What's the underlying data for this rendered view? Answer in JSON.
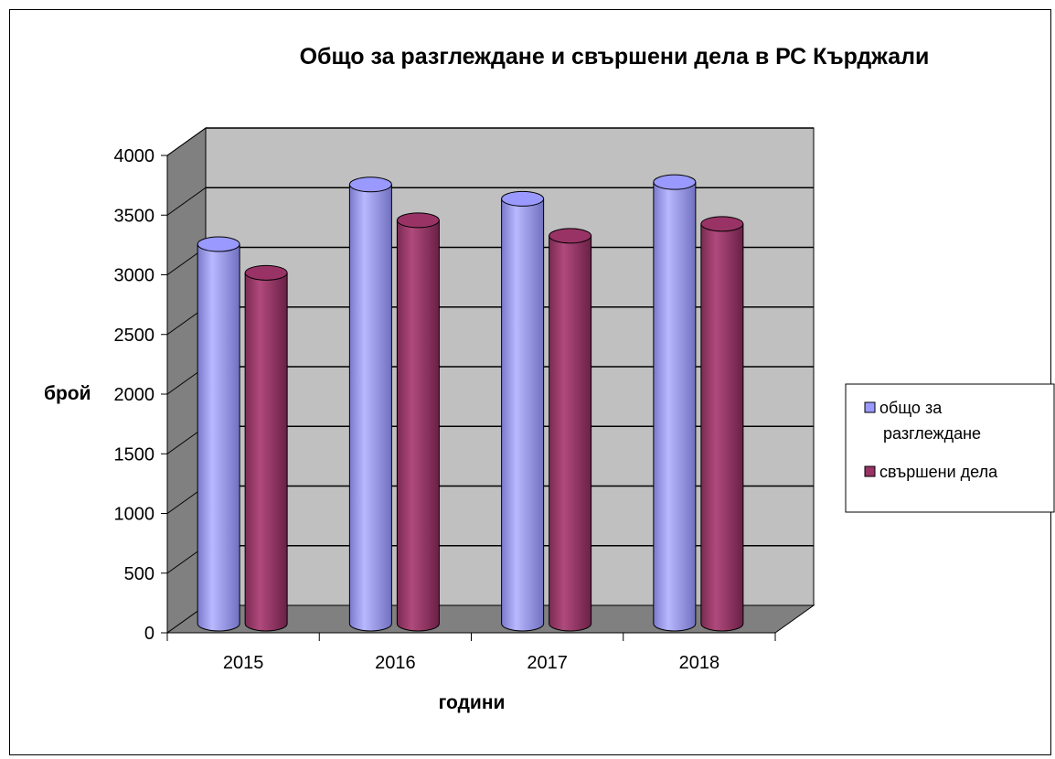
{
  "chart_data": {
    "type": "bar",
    "title": "Общо за разглеждане и свършени дела в РС Кърджали",
    "xlabel": "години",
    "ylabel": "брой",
    "categories": [
      "2015",
      "2016",
      "2017",
      "2018"
    ],
    "series": [
      {
        "name": "общо за разглеждане",
        "legend_lines": [
          "общо за",
          "разглеждане"
        ],
        "values": [
          3180,
          3680,
          3560,
          3700
        ],
        "color": "#9999ff"
      },
      {
        "name": "свършени дела",
        "legend_lines": [
          "свършени дела"
        ],
        "values": [
          2940,
          3380,
          3250,
          3350
        ],
        "color": "#993366"
      }
    ],
    "ylim": [
      0,
      4000
    ],
    "yticks": [
      "0",
      "500",
      "1000",
      "1500",
      "2000",
      "2500",
      "3000",
      "3500",
      "4000"
    ],
    "grid": true,
    "legend_position": "right",
    "colors": {
      "wall": "#c0c0c0",
      "floor": "#808080",
      "side_wall": "#808080"
    }
  }
}
